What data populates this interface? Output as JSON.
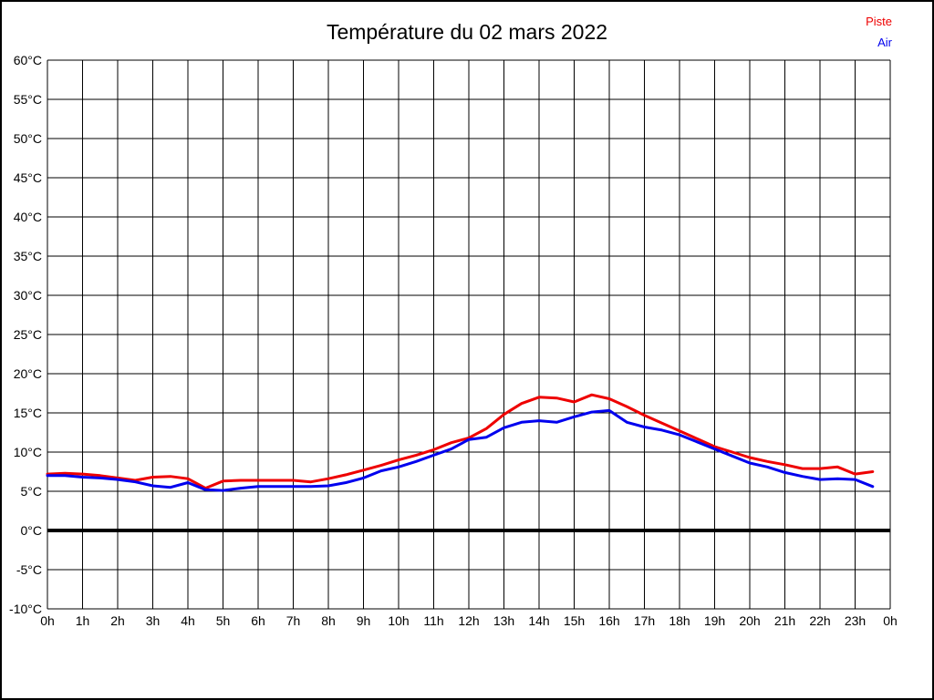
{
  "page": {
    "background": "#ffffff",
    "border_color": "#000000"
  },
  "chart_data": {
    "type": "line",
    "title": "Température du 02 mars 2022",
    "xlabel": "",
    "ylabel": "",
    "x_unit": "h",
    "y_unit": "°C",
    "xlim": [
      0,
      24
    ],
    "ylim": [
      -10,
      60
    ],
    "grid": true,
    "grid_color": "#000000",
    "legend_position": "top-right",
    "zero_line": {
      "value": 0,
      "color": "#000000",
      "width": 4
    },
    "ytick_values": [
      60,
      55,
      50,
      45,
      40,
      35,
      30,
      25,
      20,
      15,
      10,
      5,
      0,
      -5,
      -10
    ],
    "ytick_labels": [
      "60°C",
      "55°C",
      "50°C",
      "45°C",
      "40°C",
      "35°C",
      "30°C",
      "25°C",
      "20°C",
      "15°C",
      "10°C",
      "5°C",
      "0°C",
      "-5°C",
      "-10°C"
    ],
    "xtick_values": [
      0,
      1,
      2,
      3,
      4,
      5,
      6,
      7,
      8,
      9,
      10,
      11,
      12,
      13,
      14,
      15,
      16,
      17,
      18,
      19,
      20,
      21,
      22,
      23,
      24
    ],
    "xtick_labels": [
      "0h",
      "1h",
      "2h",
      "3h",
      "4h",
      "5h",
      "6h",
      "7h",
      "8h",
      "9h",
      "10h",
      "11h",
      "12h",
      "13h",
      "14h",
      "15h",
      "16h",
      "17h",
      "18h",
      "19h",
      "20h",
      "21h",
      "22h",
      "23h",
      "0h"
    ],
    "x": [
      0,
      0.5,
      1,
      1.5,
      2,
      2.5,
      3,
      3.5,
      4,
      4.5,
      5,
      5.5,
      6,
      6.5,
      7,
      7.5,
      8,
      8.5,
      9,
      9.5,
      10,
      10.5,
      11,
      11.5,
      12,
      12.5,
      13,
      13.5,
      14,
      14.5,
      15,
      15.5,
      16,
      16.5,
      17,
      17.5,
      18,
      18.5,
      19,
      19.5,
      20,
      20.5,
      21,
      21.5,
      22,
      22.5,
      23,
      23.5
    ],
    "series": [
      {
        "name": "Piste",
        "color": "#ee0000",
        "line_width": 3,
        "values": [
          7.2,
          7.3,
          7.2,
          7.0,
          6.7,
          6.4,
          6.8,
          6.9,
          6.6,
          5.4,
          6.3,
          6.4,
          6.4,
          6.4,
          6.4,
          6.2,
          6.6,
          7.1,
          7.7,
          8.3,
          9.0,
          9.6,
          10.3,
          11.2,
          11.8,
          13.0,
          14.8,
          16.2,
          17.0,
          16.9,
          16.4,
          17.3,
          16.8,
          15.8,
          14.7,
          13.7,
          12.7,
          11.7,
          10.7,
          10.0,
          9.3,
          8.8,
          8.4,
          7.9,
          7.9,
          8.1,
          7.2,
          7.5
        ]
      },
      {
        "name": "Air",
        "color": "#0000ee",
        "line_width": 3,
        "values": [
          7.0,
          7.0,
          6.8,
          6.7,
          6.5,
          6.2,
          5.7,
          5.5,
          6.1,
          5.2,
          5.1,
          5.4,
          5.6,
          5.6,
          5.6,
          5.6,
          5.7,
          6.1,
          6.7,
          7.6,
          8.1,
          8.8,
          9.6,
          10.4,
          11.6,
          11.9,
          13.1,
          13.8,
          14.0,
          13.8,
          14.5,
          15.1,
          15.3,
          13.8,
          13.2,
          12.8,
          12.2,
          11.3,
          10.4,
          9.5,
          8.6,
          8.1,
          7.4,
          6.9,
          6.5,
          6.6,
          6.5,
          5.6
        ]
      }
    ]
  }
}
